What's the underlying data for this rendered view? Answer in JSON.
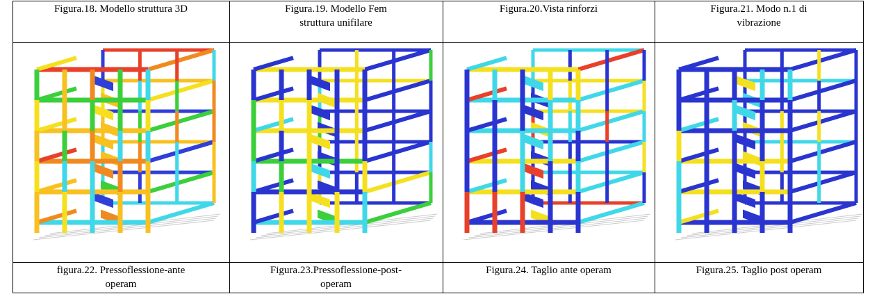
{
  "table": {
    "top_row": [
      [
        "Figura.18. Modello struttura 3D"
      ],
      [
        "Figura.19. Modello Fem",
        "struttura unifilare"
      ],
      [
        "Figura.20.Vista rinforzi"
      ],
      [
        "Figura.21. Modo n.1 di",
        "vibrazione"
      ]
    ],
    "bottom_row": [
      [
        "figura.22. Pressoflessione-ante",
        "operam"
      ],
      [
        "Figura.23.Pressoflessione-post-",
        "operam"
      ],
      [
        "Figura.24. Taglio ante operam"
      ],
      [
        "Figura.25. Taglio post operam"
      ]
    ]
  }
}
